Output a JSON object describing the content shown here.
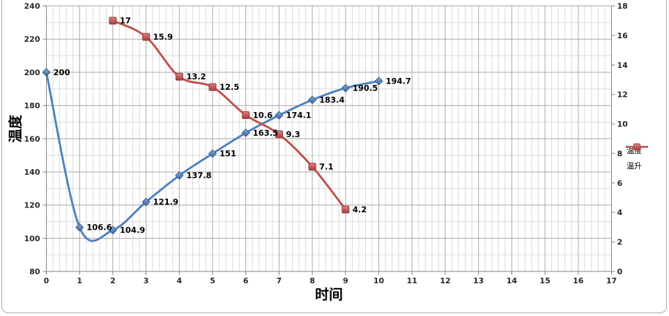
{
  "chart_data": {
    "type": "line",
    "title": "",
    "x_axis": {
      "label": "时间",
      "min": 0,
      "max": 17,
      "major": 1,
      "minor": 0.2,
      "ticks": [
        0,
        1,
        2,
        3,
        4,
        5,
        6,
        7,
        8,
        9,
        10,
        11,
        12,
        13,
        14,
        15,
        16,
        17
      ]
    },
    "y_axis_left": {
      "label": "温度",
      "min": 80,
      "max": 240,
      "major": 20,
      "minor": 10,
      "ticks": [
        240,
        220,
        200,
        180,
        160,
        140,
        120,
        100,
        80
      ]
    },
    "y_axis_right": {
      "label": "",
      "min": 0,
      "max": 18,
      "major": 2,
      "ticks": [
        18,
        16,
        14,
        12,
        10,
        8,
        6,
        4,
        2,
        0
      ]
    },
    "grid": {
      "major": true,
      "minor": true
    },
    "legend": {
      "position": "right",
      "entries": [
        {
          "id": "temperature",
          "label": "温度",
          "color": "#4F81BD",
          "marker": "diamond"
        },
        {
          "id": "temp-rise",
          "label": "温升",
          "color": "#C0504D",
          "marker": "square"
        }
      ]
    },
    "series": [
      {
        "id": "temperature",
        "name": "温度",
        "axis": "left",
        "color": "#4F81BD",
        "stroke_dark": "#38618F",
        "marker": "diamond",
        "smooth": true,
        "x": [
          0,
          1,
          2,
          3,
          4,
          5,
          6,
          7,
          8,
          9,
          10
        ],
        "y": [
          200,
          106.6,
          104.9,
          121.9,
          137.8,
          151,
          163.5,
          174.1,
          183.4,
          190.5,
          194.7
        ],
        "labels": [
          "200",
          "106.6",
          "104.9",
          "121.9",
          "137.8",
          "151",
          "163.5",
          "174.1",
          "183.4",
          "190.5",
          "194.7"
        ]
      },
      {
        "id": "temp-rise",
        "name": "温升",
        "axis": "right",
        "color": "#C0504D",
        "stroke_dark": "#963634",
        "marker": "square",
        "smooth": true,
        "x": [
          2,
          3,
          4,
          5,
          6,
          7,
          8,
          9
        ],
        "y": [
          17,
          15.9,
          13.2,
          12.5,
          10.6,
          9.3,
          7.1,
          4.2
        ],
        "labels": [
          "17",
          "15.9",
          "13.2",
          "12.5",
          "10.6",
          "9.3",
          "7.1",
          "4.2"
        ]
      }
    ]
  }
}
